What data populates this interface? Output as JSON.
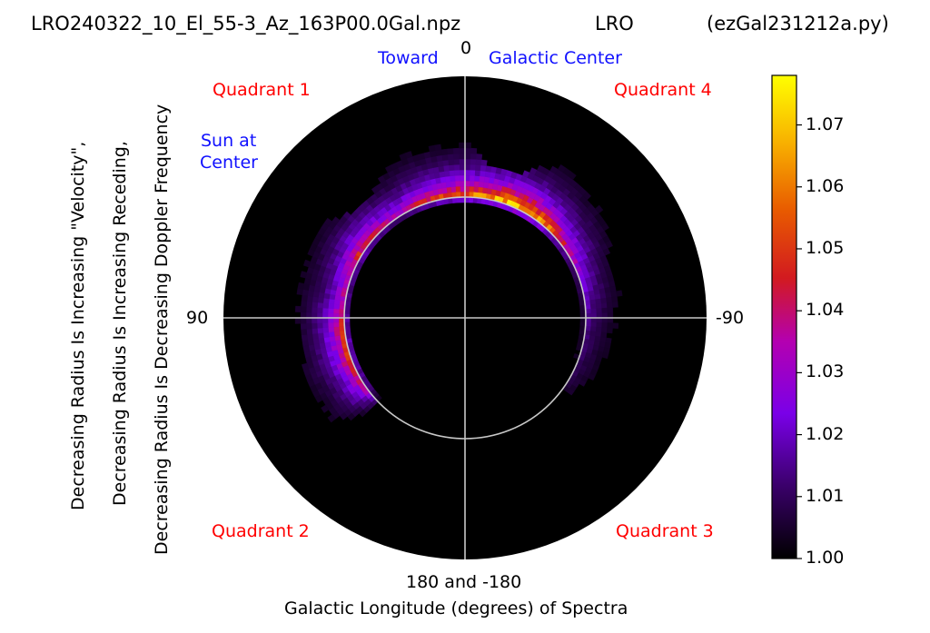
{
  "chart_data": {
    "type": "heatmap",
    "projection": "polar",
    "title_left": "LRO240322_10_El_55-3_Az_163P00.0Gal.npz",
    "title_center": "LRO",
    "title_right": "(ezGal231212a.py)",
    "xlabel": "Galactic Longitude (degrees) of Spectra",
    "ylabel_lines": [
      "Decreasing Radius Is Increasing \"Velocity\",",
      "Decreasing Radius Is Increasing Receding,",
      "Decreasing Radius Is Decreasing Doppler Frequency"
    ],
    "angle_labels": {
      "top": "0",
      "left": "90",
      "right": "-90",
      "bottom": "180 and -180"
    },
    "annotations": {
      "toward": "Toward",
      "galactic_center": "Galactic Center",
      "sun_line1": "Sun at",
      "sun_line2": "Center",
      "quadrant1": "Quadrant 1",
      "quadrant2": "Quadrant 2",
      "quadrant3": "Quadrant 3",
      "quadrant4": "Quadrant 4"
    },
    "colormap": "gnuplot",
    "colorbar": {
      "vmin": 1.0,
      "vmax": 1.078,
      "ticks": [
        "1.00",
        "1.01",
        "1.02",
        "1.03",
        "1.04",
        "1.05",
        "1.06",
        "1.07"
      ]
    },
    "reference_circle_fraction": 0.5,
    "longitude_range": [
      -130,
      138
    ],
    "emission_ridge": {
      "longitudes": [
        133,
        120,
        110,
        100,
        90,
        80,
        70,
        60,
        50,
        40,
        30,
        20,
        10,
        0,
        -10,
        -20,
        -30,
        -40,
        -50,
        -60,
        -70,
        -80,
        -90,
        -100,
        -110,
        -120,
        -125,
        -130
      ],
      "peak_values": [
        1.03,
        1.04,
        1.046,
        1.048,
        1.044,
        1.035,
        1.036,
        1.044,
        1.045,
        1.035,
        1.033,
        1.045,
        1.05,
        1.055,
        1.062,
        1.068,
        1.07,
        1.06,
        1.045,
        1.035,
        1.025,
        1.02,
        1.015,
        1.012,
        1.01,
        1.008,
        1.006,
        1.004
      ]
    },
    "colors": {
      "background": "#ffffff",
      "disk": "#000000",
      "grid": "#c8c8c8",
      "red": "#ff0000",
      "blue": "#1010ff"
    }
  }
}
